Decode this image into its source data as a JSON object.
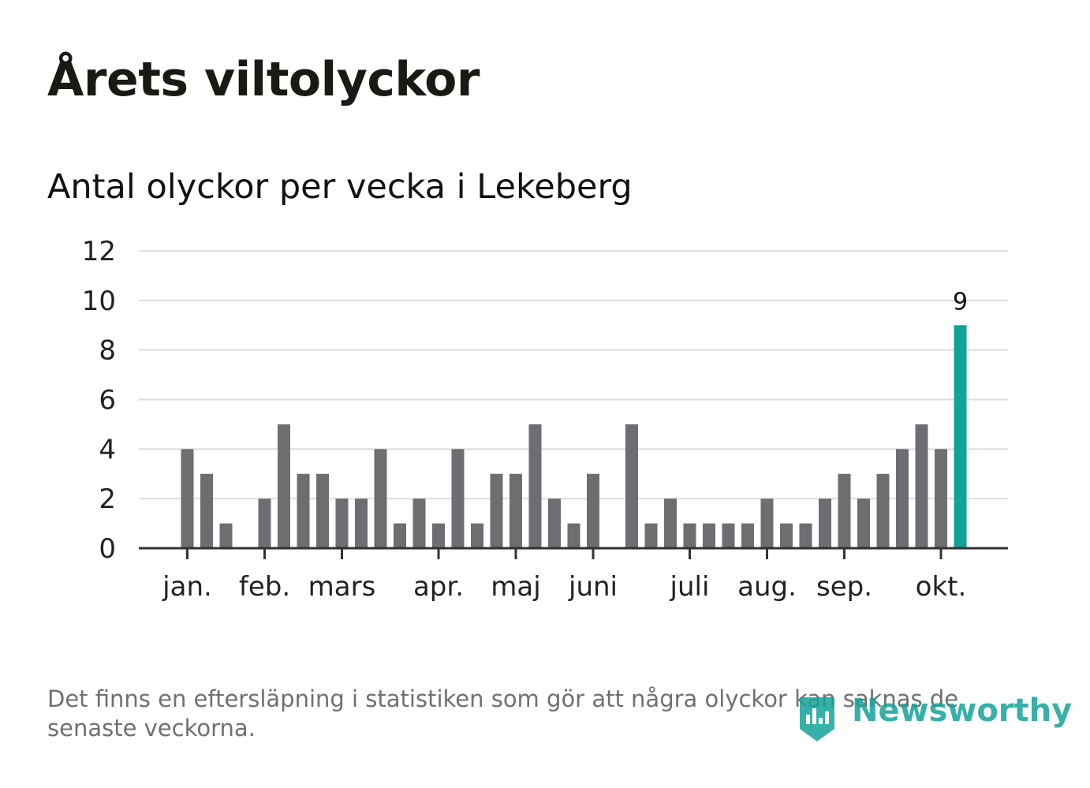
{
  "header": {
    "title": "Årets viltolyckor",
    "subtitle": "Antal olyckor per vecka i Lekeberg"
  },
  "footer": {
    "note": "Det finns en eftersläpning i statistiken som gör att några olyckor kan saknas de senaste veckorna.",
    "brand": "Newsworthy"
  },
  "colors": {
    "bar": "#6e6d72",
    "highlight": "#11a397",
    "grid": "#dddddd",
    "axis": "#333333",
    "text": "#222222"
  },
  "chart_data": {
    "type": "bar",
    "title": "Antal olyckor per vecka i Lekeberg",
    "xlabel": "",
    "ylabel": "",
    "ylim": [
      0,
      12
    ],
    "yticks": [
      "0",
      "2",
      "4",
      "6",
      "8",
      "10",
      "12"
    ],
    "month_labels": [
      {
        "label": "jan.",
        "week": 1
      },
      {
        "label": "feb.",
        "week": 5
      },
      {
        "label": "mars",
        "week": 9
      },
      {
        "label": "apr.",
        "week": 14
      },
      {
        "label": "maj",
        "week": 18
      },
      {
        "label": "juni",
        "week": 22
      },
      {
        "label": "juli",
        "week": 27
      },
      {
        "label": "aug.",
        "week": 31
      },
      {
        "label": "sep.",
        "week": 35
      },
      {
        "label": "okt.",
        "week": 40
      }
    ],
    "weeks": [
      1,
      2,
      3,
      4,
      5,
      6,
      7,
      8,
      9,
      10,
      11,
      12,
      13,
      14,
      15,
      16,
      17,
      18,
      19,
      20,
      21,
      22,
      23,
      24,
      25,
      26,
      27,
      28,
      29,
      30,
      31,
      32,
      33,
      34,
      35,
      36,
      37,
      38,
      39,
      40,
      41
    ],
    "values": [
      4,
      3,
      1,
      0,
      2,
      5,
      3,
      3,
      2,
      2,
      4,
      1,
      2,
      1,
      4,
      1,
      3,
      3,
      5,
      2,
      1,
      3,
      0,
      5,
      1,
      2,
      1,
      1,
      1,
      1,
      2,
      1,
      1,
      2,
      3,
      2,
      3,
      4,
      5,
      4,
      9
    ],
    "highlight_index": 40,
    "highlight_label": "9",
    "grid": true
  }
}
